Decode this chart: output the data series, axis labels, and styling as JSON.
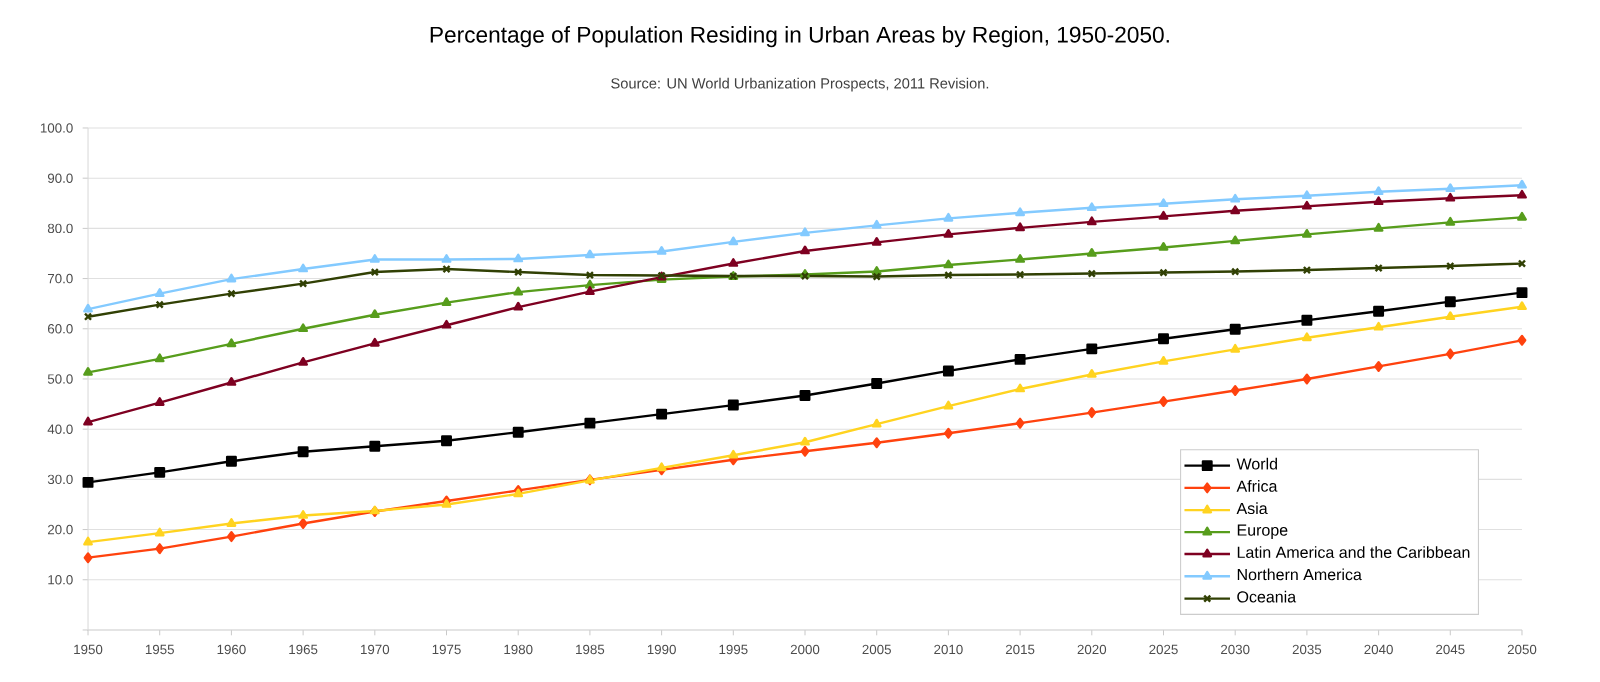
{
  "chart_data": {
    "type": "line",
    "title": "Percentage of Population Residing in Urban Areas by Region, 1950-2050.",
    "subtitle": "Source: UN World Urbanization Prospects, 2011 Revision.",
    "x": [
      1950,
      1955,
      1960,
      1965,
      1970,
      1975,
      1980,
      1985,
      1990,
      1995,
      2000,
      2005,
      2010,
      2015,
      2020,
      2025,
      2030,
      2035,
      2040,
      2045,
      2050
    ],
    "xlim": [
      1950,
      2050
    ],
    "xticks": [
      1950,
      1955,
      1960,
      1965,
      1970,
      1975,
      1980,
      1985,
      1990,
      1995,
      2000,
      2005,
      2010,
      2015,
      2020,
      2025,
      2030,
      2035,
      2040,
      2045,
      2050
    ],
    "ylim": [
      0,
      100
    ],
    "yticks": [
      {
        "value": 0,
        "label": null
      },
      {
        "value": 10,
        "label": "10.0"
      },
      {
        "value": 20,
        "label": "20.0"
      },
      {
        "value": 30,
        "label": "30.0"
      },
      {
        "value": 40,
        "label": "40.0"
      },
      {
        "value": 50,
        "label": "50.0"
      },
      {
        "value": 60,
        "label": "60.0"
      },
      {
        "value": 70,
        "label": "70.0"
      },
      {
        "value": 80,
        "label": "80.0"
      },
      {
        "value": 90,
        "label": "90.0"
      },
      {
        "value": 100,
        "label": "100.0"
      }
    ],
    "grid": "y",
    "legend": "bottom right",
    "series": [
      {
        "name": "World",
        "color": "#000000",
        "marker": "square",
        "values": [
          29.4,
          31.4,
          33.6,
          35.5,
          36.6,
          37.7,
          39.4,
          41.2,
          43.0,
          44.8,
          46.7,
          49.1,
          51.6,
          53.9,
          56.0,
          58.0,
          59.9,
          61.7,
          63.5,
          65.4,
          67.2
        ]
      },
      {
        "name": "Africa",
        "color": "#ff420e",
        "marker": "diamond",
        "values": [
          14.4,
          16.2,
          18.6,
          21.2,
          23.6,
          25.7,
          27.8,
          29.9,
          31.9,
          33.9,
          35.6,
          37.3,
          39.2,
          41.2,
          43.3,
          45.5,
          47.7,
          50.0,
          52.5,
          55.0,
          57.7
        ]
      },
      {
        "name": "Asia",
        "color": "#ffd320",
        "marker": "triangle",
        "values": [
          17.5,
          19.3,
          21.2,
          22.8,
          23.7,
          25.0,
          27.1,
          29.8,
          32.3,
          34.8,
          37.4,
          41.0,
          44.6,
          48.0,
          50.9,
          53.5,
          55.9,
          58.2,
          60.3,
          62.4,
          64.4
        ]
      },
      {
        "name": "Europe",
        "color": "#579d1c",
        "marker": "triangle",
        "values": [
          51.3,
          54.0,
          57.0,
          60.0,
          62.8,
          65.2,
          67.3,
          68.7,
          69.8,
          70.4,
          70.8,
          71.4,
          72.7,
          73.8,
          75.0,
          76.2,
          77.5,
          78.8,
          80.0,
          81.2,
          82.2
        ]
      },
      {
        "name": "Latin America and the Caribbean",
        "color": "#7e0021",
        "marker": "triangle",
        "values": [
          41.4,
          45.3,
          49.3,
          53.3,
          57.1,
          60.7,
          64.3,
          67.4,
          70.3,
          73.0,
          75.5,
          77.2,
          78.8,
          80.1,
          81.3,
          82.4,
          83.5,
          84.4,
          85.3,
          86.0,
          86.6
        ]
      },
      {
        "name": "Northern America",
        "color": "#83caff",
        "marker": "triangle",
        "values": [
          63.9,
          67.0,
          69.9,
          71.9,
          73.8,
          73.8,
          73.9,
          74.7,
          75.4,
          77.3,
          79.1,
          80.6,
          82.0,
          83.1,
          84.1,
          84.9,
          85.8,
          86.5,
          87.3,
          87.9,
          88.6
        ]
      },
      {
        "name": "Oceania",
        "color": "#314004",
        "marker": "cross",
        "values": [
          62.4,
          64.8,
          67.0,
          69.0,
          71.3,
          71.9,
          71.3,
          70.7,
          70.6,
          70.5,
          70.5,
          70.4,
          70.7,
          70.8,
          71.0,
          71.2,
          71.4,
          71.7,
          72.1,
          72.5,
          73.0
        ]
      }
    ]
  }
}
